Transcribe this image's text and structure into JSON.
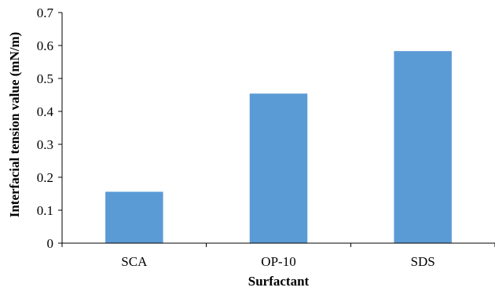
{
  "chart_data": {
    "type": "bar",
    "title": "",
    "xlabel": "Surfactant",
    "ylabel": "Interfacial tension value (mN/m)",
    "categories": [
      "SCA",
      "OP-10",
      "SDS"
    ],
    "values": [
      0.156,
      0.454,
      0.583
    ],
    "ylim": [
      0,
      0.7
    ],
    "yticks": [
      "0",
      "0.1",
      "0.2",
      "0.3",
      "0.4",
      "0.5",
      "0.6",
      "0.7"
    ],
    "grid": false,
    "legend": "none",
    "bar_color": "#5b9bd5"
  }
}
